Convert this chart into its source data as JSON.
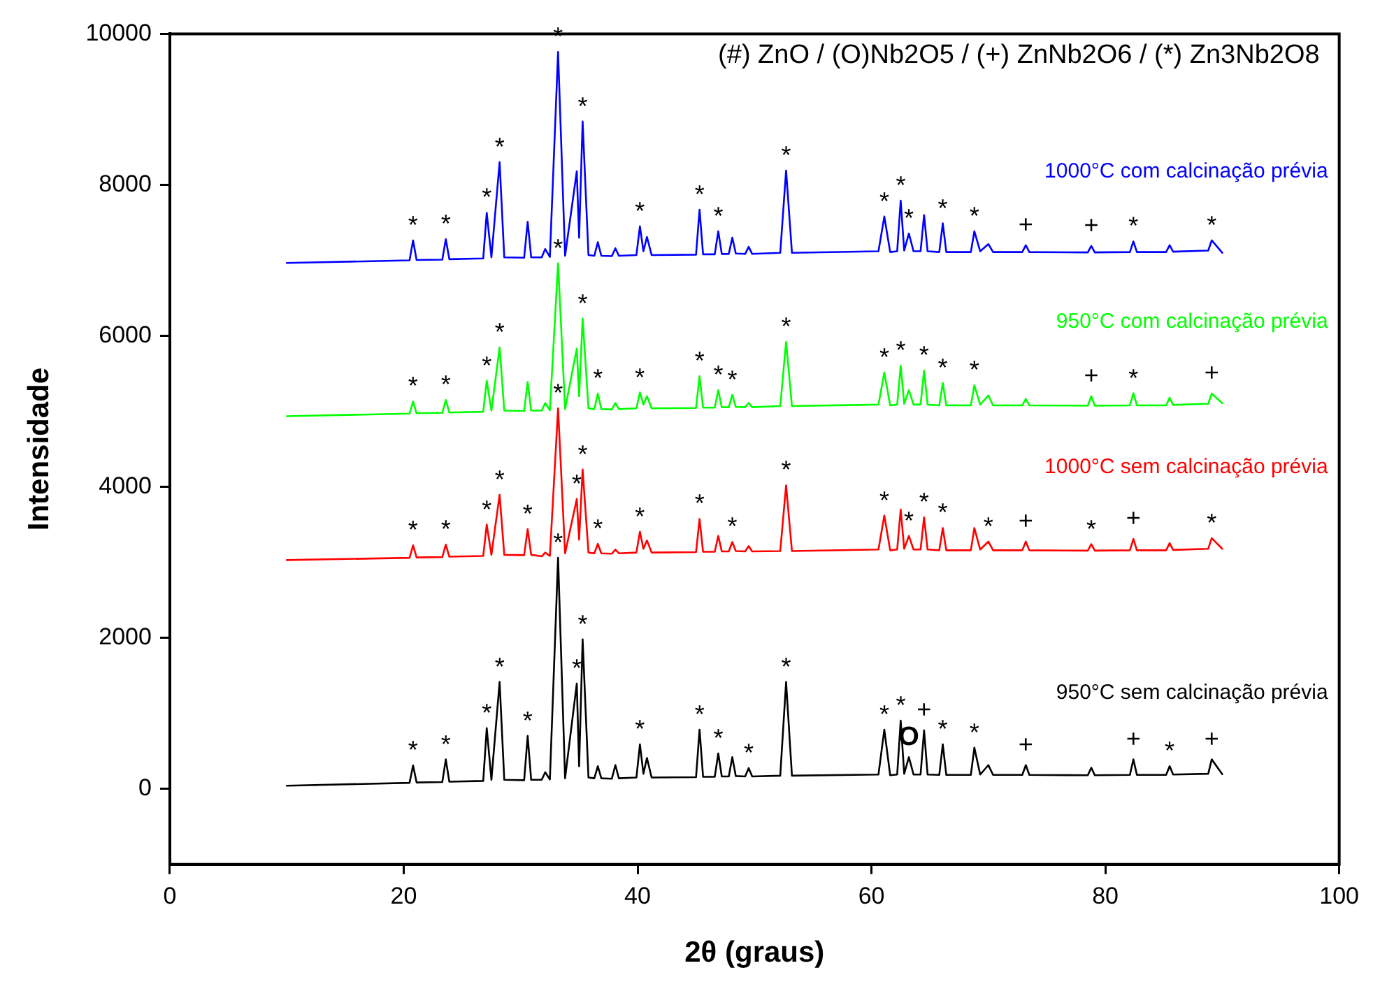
{
  "chart_data": {
    "type": "line",
    "xlabel": "2θ (graus)",
    "ylabel": "Intensidade",
    "xlim": [
      0,
      100
    ],
    "xticks": [
      0,
      20,
      40,
      60,
      80,
      100
    ],
    "ylim": [
      -1000,
      10000
    ],
    "yticks": [
      0,
      2000,
      4000,
      6000,
      8000,
      10000
    ],
    "grid": false,
    "legend": false,
    "marker": "none",
    "line_style": "solid",
    "x": [
      10,
      20.5,
      20.8,
      21.1,
      23.3,
      23.6,
      23.9,
      26.8,
      27.1,
      27.5,
      28.2,
      28.6,
      30.3,
      30.6,
      30.9,
      31.8,
      32.1,
      32.5,
      33.2,
      33.8,
      34.8,
      35.0,
      35.3,
      35.8,
      36.3,
      36.6,
      36.9,
      37.8,
      38.1,
      38.4,
      39.9,
      40.2,
      40.5,
      40.8,
      41.2,
      45.0,
      45.3,
      45.6,
      46.6,
      46.9,
      47.2,
      47.8,
      48.1,
      48.4,
      49.2,
      49.5,
      49.8,
      52.2,
      52.7,
      53.2,
      60.6,
      61.1,
      61.6,
      62.2,
      62.5,
      62.8,
      63.2,
      63.6,
      64.2,
      64.5,
      64.8,
      65.8,
      66.1,
      66.4,
      68.5,
      68.8,
      69.3,
      70.0,
      70.4,
      72.9,
      73.2,
      73.5,
      78.5,
      78.8,
      79.1,
      82.1,
      82.4,
      82.7,
      85.2,
      85.5,
      85.8,
      88.8,
      89.1,
      90
    ],
    "series": [
      {
        "name": "1000°C com calcinação prévia",
        "color": "#0000ff",
        "values": [
          6965,
          7000,
          7263,
          7005,
          7010,
          7280,
          7015,
          7025,
          7630,
          7040,
          8300,
          7040,
          7035,
          7510,
          7040,
          7040,
          7150,
          7045,
          9760,
          7060,
          8180,
          7300,
          8840,
          7070,
          7060,
          7240,
          7060,
          7055,
          7160,
          7060,
          7070,
          7450,
          7120,
          7310,
          7070,
          7075,
          7670,
          7080,
          7080,
          7385,
          7085,
          7085,
          7300,
          7090,
          7085,
          7180,
          7085,
          7100,
          8190,
          7100,
          7120,
          7580,
          7110,
          7120,
          7790,
          7130,
          7355,
          7120,
          7120,
          7600,
          7120,
          7110,
          7490,
          7110,
          7110,
          7385,
          7120,
          7215,
          7110,
          7110,
          7200,
          7110,
          7105,
          7190,
          7105,
          7110,
          7250,
          7110,
          7110,
          7200,
          7115,
          7130,
          7265,
          7100
        ]
      },
      {
        "name": "950°C com calcinação prévia",
        "color": "#00ff00",
        "values": [
          4936,
          4970,
          5130,
          4975,
          4980,
          5150,
          4985,
          4995,
          5405,
          5010,
          5845,
          5010,
          5005,
          5390,
          5010,
          5010,
          5110,
          5015,
          6960,
          5030,
          5830,
          5200,
          6230,
          5040,
          5030,
          5235,
          5030,
          5025,
          5110,
          5030,
          5040,
          5250,
          5090,
          5200,
          5040,
          5045,
          5465,
          5050,
          5050,
          5280,
          5055,
          5055,
          5220,
          5060,
          5055,
          5110,
          5055,
          5070,
          5920,
          5070,
          5090,
          5515,
          5080,
          5090,
          5605,
          5100,
          5280,
          5090,
          5090,
          5540,
          5090,
          5080,
          5375,
          5080,
          5080,
          5345,
          5090,
          5210,
          5080,
          5080,
          5165,
          5080,
          5075,
          5200,
          5075,
          5080,
          5240,
          5080,
          5080,
          5180,
          5085,
          5100,
          5235,
          5110
        ]
      },
      {
        "name": "1000°C sem calcinação prévia",
        "color": "#ff0000",
        "values": [
          3030,
          3060,
          3225,
          3065,
          3070,
          3235,
          3075,
          3085,
          3500,
          3100,
          3895,
          3100,
          3095,
          3440,
          3100,
          3080,
          3130,
          3085,
          5040,
          3120,
          3840,
          3300,
          4230,
          3130,
          3120,
          3245,
          3120,
          3115,
          3170,
          3120,
          3130,
          3405,
          3180,
          3290,
          3130,
          3135,
          3575,
          3140,
          3140,
          3350,
          3145,
          3145,
          3270,
          3150,
          3145,
          3215,
          3145,
          3150,
          4020,
          3150,
          3170,
          3620,
          3160,
          3170,
          3700,
          3180,
          3350,
          3170,
          3170,
          3595,
          3170,
          3160,
          3455,
          3160,
          3160,
          3455,
          3170,
          3275,
          3160,
          3160,
          3275,
          3160,
          3155,
          3240,
          3155,
          3160,
          3310,
          3160,
          3160,
          3255,
          3165,
          3180,
          3320,
          3180
        ]
      },
      {
        "name": "950°C sem calcinação prévia",
        "color": "#000000",
        "values": [
          42,
          80,
          310,
          85,
          90,
          390,
          95,
          105,
          805,
          120,
          1415,
          120,
          115,
          700,
          120,
          120,
          220,
          125,
          3060,
          140,
          1395,
          300,
          1980,
          150,
          140,
          300,
          140,
          135,
          315,
          140,
          150,
          590,
          200,
          410,
          150,
          155,
          785,
          160,
          160,
          470,
          165,
          165,
          420,
          170,
          165,
          275,
          165,
          175,
          1415,
          175,
          190,
          785,
          180,
          190,
          905,
          200,
          420,
          190,
          190,
          775,
          190,
          185,
          590,
          185,
          185,
          545,
          190,
          315,
          185,
          185,
          315,
          185,
          180,
          280,
          180,
          185,
          390,
          185,
          185,
          300,
          190,
          200,
          390,
          195
        ]
      }
    ],
    "annotations": [
      "(#) ZnO / (O)Nb2O5 / (+) ZnNb2O6 / (*) Zn3Nb2O8",
      {
        "text": "*",
        "x": 20.8,
        "y": 7263
      },
      {
        "text": "*",
        "x": 23.6,
        "y": 7280
      },
      {
        "text": "*",
        "x": 27.1,
        "y": 7630
      },
      {
        "text": "*",
        "x": 28.2,
        "y": 8300
      },
      {
        "text": "*",
        "x": 33.2,
        "y": 9760
      },
      {
        "text": "*",
        "x": 35.3,
        "y": 8840
      },
      {
        "text": "*",
        "x": 40.2,
        "y": 7450
      },
      {
        "text": "*",
        "x": 45.3,
        "y": 7670
      },
      {
        "text": "*",
        "x": 46.9,
        "y": 7385
      },
      {
        "text": "*",
        "x": 52.7,
        "y": 8190
      },
      {
        "text": "*",
        "x": 61.1,
        "y": 7580
      },
      {
        "text": "*",
        "x": 62.5,
        "y": 7790
      },
      {
        "text": "*",
        "x": 63.2,
        "y": 7355
      },
      {
        "text": "*",
        "x": 66.1,
        "y": 7490
      },
      {
        "text": "*",
        "x": 68.8,
        "y": 7385
      },
      {
        "text": "+",
        "x": 73.2,
        "y": 7200
      },
      {
        "text": "+",
        "x": 78.8,
        "y": 7190
      },
      {
        "text": "*",
        "x": 82.4,
        "y": 7250
      },
      {
        "text": "*",
        "x": 89.1,
        "y": 7265
      },
      {
        "text": "*",
        "x": 20.8,
        "y": 5130
      },
      {
        "text": "*",
        "x": 23.6,
        "y": 5150
      },
      {
        "text": "*",
        "x": 27.1,
        "y": 5405
      },
      {
        "text": "*",
        "x": 28.2,
        "y": 5845
      },
      {
        "text": "*",
        "x": 33.2,
        "y": 6960
      },
      {
        "text": "*",
        "x": 35.3,
        "y": 6230
      },
      {
        "text": "*",
        "x": 36.6,
        "y": 5235
      },
      {
        "text": "*",
        "x": 40.2,
        "y": 5250
      },
      {
        "text": "*",
        "x": 45.3,
        "y": 5465
      },
      {
        "text": "*",
        "x": 46.9,
        "y": 5280
      },
      {
        "text": "*",
        "x": 48.1,
        "y": 5220
      },
      {
        "text": "*",
        "x": 52.7,
        "y": 5920
      },
      {
        "text": "*",
        "x": 61.1,
        "y": 5515
      },
      {
        "text": "*",
        "x": 62.5,
        "y": 5605
      },
      {
        "text": "*",
        "x": 64.5,
        "y": 5540
      },
      {
        "text": "*",
        "x": 66.1,
        "y": 5375
      },
      {
        "text": "*",
        "x": 68.8,
        "y": 5345
      },
      {
        "text": "+",
        "x": 78.8,
        "y": 5200
      },
      {
        "text": "*",
        "x": 82.4,
        "y": 5240
      },
      {
        "text": "+",
        "x": 89.1,
        "y": 5235
      },
      {
        "text": "*",
        "x": 20.8,
        "y": 3225
      },
      {
        "text": "*",
        "x": 23.6,
        "y": 3235
      },
      {
        "text": "*",
        "x": 27.1,
        "y": 3500
      },
      {
        "text": "*",
        "x": 28.2,
        "y": 3895
      },
      {
        "text": "*",
        "x": 30.6,
        "y": 3440
      },
      {
        "text": "*",
        "x": 33.2,
        "y": 5040
      },
      {
        "text": "*",
        "x": 34.8,
        "y": 3840
      },
      {
        "text": "*",
        "x": 35.3,
        "y": 4230
      },
      {
        "text": "*",
        "x": 36.6,
        "y": 3245
      },
      {
        "text": "*",
        "x": 40.2,
        "y": 3405
      },
      {
        "text": "*",
        "x": 45.3,
        "y": 3575
      },
      {
        "text": "*",
        "x": 48.1,
        "y": 3270
      },
      {
        "text": "*",
        "x": 52.7,
        "y": 4020
      },
      {
        "text": "*",
        "x": 61.1,
        "y": 3620
      },
      {
        "text": "*",
        "x": 63.2,
        "y": 3350
      },
      {
        "text": "*",
        "x": 64.5,
        "y": 3595
      },
      {
        "text": "*",
        "x": 66.1,
        "y": 3455
      },
      {
        "text": "*",
        "x": 70.0,
        "y": 3275
      },
      {
        "text": "+",
        "x": 73.2,
        "y": 3275
      },
      {
        "text": "*",
        "x": 78.8,
        "y": 3240
      },
      {
        "text": "+",
        "x": 82.4,
        "y": 3310
      },
      {
        "text": "*",
        "x": 89.1,
        "y": 3320
      },
      {
        "text": "*",
        "x": 20.8,
        "y": 310
      },
      {
        "text": "*",
        "x": 23.6,
        "y": 390
      },
      {
        "text": "*",
        "x": 27.1,
        "y": 805
      },
      {
        "text": "*",
        "x": 28.2,
        "y": 1415
      },
      {
        "text": "*",
        "x": 30.6,
        "y": 700
      },
      {
        "text": "*",
        "x": 33.2,
        "y": 3060
      },
      {
        "text": "*",
        "x": 34.8,
        "y": 1395
      },
      {
        "text": "*",
        "x": 35.3,
        "y": 1980
      },
      {
        "text": "*",
        "x": 40.2,
        "y": 590
      },
      {
        "text": "*",
        "x": 45.3,
        "y": 785
      },
      {
        "text": "*",
        "x": 46.9,
        "y": 470
      },
      {
        "text": "*",
        "x": 49.5,
        "y": 275
      },
      {
        "text": "*",
        "x": 52.7,
        "y": 1415
      },
      {
        "text": "*",
        "x": 61.1,
        "y": 785
      },
      {
        "text": "*",
        "x": 62.5,
        "y": 905
      },
      {
        "text": "O",
        "x": 63.2,
        "y": 420
      },
      {
        "text": "+",
        "x": 64.5,
        "y": 775
      },
      {
        "text": "*",
        "x": 66.1,
        "y": 590
      },
      {
        "text": "*",
        "x": 68.8,
        "y": 545
      },
      {
        "text": "+",
        "x": 73.2,
        "y": 315
      },
      {
        "text": "+",
        "x": 82.4,
        "y": 390
      },
      {
        "text": "*",
        "x": 85.5,
        "y": 300
      },
      {
        "text": "+",
        "x": 89.1,
        "y": 390
      }
    ]
  }
}
